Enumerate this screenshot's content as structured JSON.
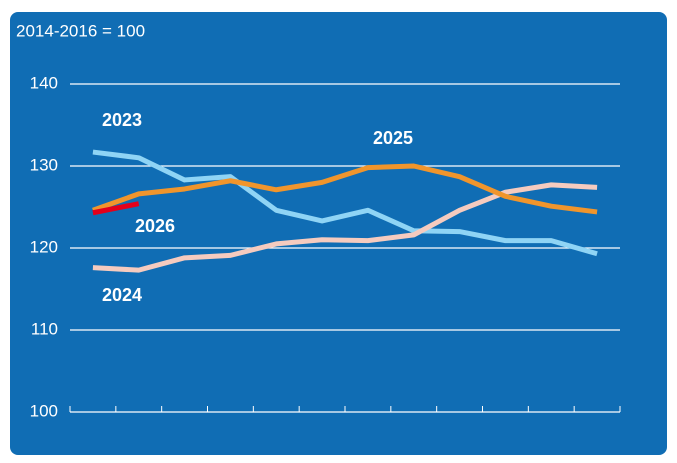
{
  "chart_data": {
    "type": "line",
    "y_axis_label": "2014-2016 = 100",
    "categories": [
      null,
      null,
      null,
      null,
      null,
      null,
      null,
      null,
      null,
      null,
      null,
      null
    ],
    "series": [
      {
        "name": "2023",
        "color": "#8fd4f5",
        "values": [
          131.7,
          131.0,
          128.3,
          128.7,
          124.6,
          123.3,
          124.6,
          122.1,
          122.0,
          120.9,
          120.9,
          119.3
        ]
      },
      {
        "name": "2024",
        "color": "#f5cbbf",
        "values": [
          117.6,
          117.3,
          118.8,
          119.1,
          120.5,
          121.0,
          120.9,
          121.6,
          124.6,
          126.8,
          127.7,
          127.4
        ]
      },
      {
        "name": "2025",
        "color": "#f0952c",
        "values": [
          124.6,
          126.6,
          127.2,
          128.2,
          127.1,
          128.0,
          129.8,
          130.0,
          128.7,
          126.3,
          125.1,
          124.4
        ]
      },
      {
        "name": "2026",
        "color": "#e3001b",
        "values": [
          124.3,
          125.4,
          null,
          null,
          null,
          null,
          null,
          null,
          null,
          null,
          null,
          null
        ]
      }
    ],
    "ylim": [
      100,
      140
    ],
    "yticks": [
      100,
      110,
      120,
      130,
      140
    ],
    "grid": true
  }
}
